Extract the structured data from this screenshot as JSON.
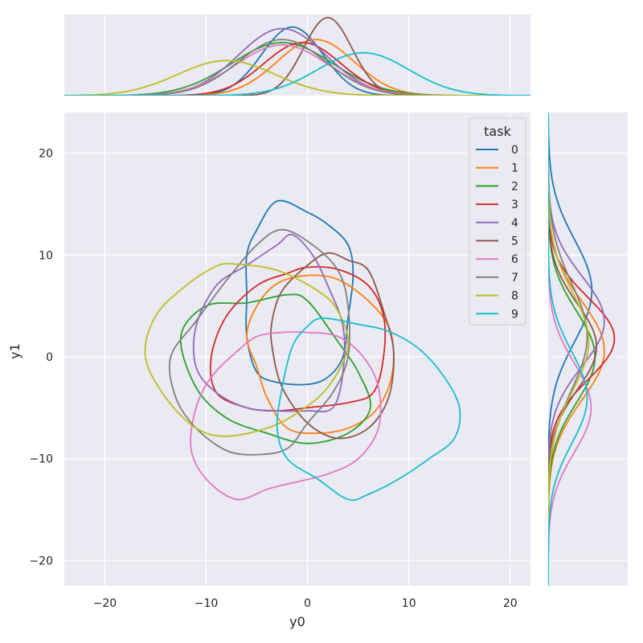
{
  "chart_data": {
    "type": "jointplot-kde",
    "xlabel": "y0",
    "ylabel": "y1",
    "xlim": [
      -24,
      22
    ],
    "ylim": [
      -22.5,
      24
    ],
    "xticks": [
      -20,
      -10,
      0,
      10,
      20
    ],
    "yticks": [
      -20,
      -10,
      0,
      10,
      20
    ],
    "xtick_labels": [
      "−20",
      "−10",
      "0",
      "10",
      "20"
    ],
    "ytick_labels": [
      "−20",
      "−10",
      "0",
      "10",
      "20"
    ],
    "grid": true,
    "legend": {
      "title": "task",
      "placement": "top-right"
    },
    "series": [
      {
        "name": "0",
        "color": "#1f77b4",
        "contour": [
          [
            -3,
            15.3
          ],
          [
            0,
            14.2
          ],
          [
            2,
            13
          ],
          [
            4,
            11
          ],
          [
            4.5,
            8
          ],
          [
            4,
            3.8
          ],
          [
            3.5,
            0
          ],
          [
            2,
            -2
          ],
          [
            0,
            -2.7
          ],
          [
            -3,
            -2.5
          ],
          [
            -5,
            -1.5
          ],
          [
            -6,
            2
          ],
          [
            -6,
            6
          ],
          [
            -6,
            10
          ],
          [
            -5,
            12.5
          ]
        ],
        "marg_x": {
          "mean": -1.5,
          "sd": 3.0,
          "peak": 0.88
        },
        "marg_y": {
          "mean": 6.5,
          "sd": 5.0,
          "peak": 0.56
        }
      },
      {
        "name": "1",
        "color": "#ff7f0e",
        "contour": [
          [
            0,
            8
          ],
          [
            3,
            7.6
          ],
          [
            6,
            5.5
          ],
          [
            8,
            3
          ],
          [
            8.5,
            0
          ],
          [
            8,
            -3
          ],
          [
            6.5,
            -5.5
          ],
          [
            4,
            -7
          ],
          [
            1,
            -7.5
          ],
          [
            -2,
            -7
          ],
          [
            -4,
            -4
          ],
          [
            -5,
            -1
          ],
          [
            -6,
            2
          ],
          [
            -5,
            5
          ],
          [
            -3,
            7.2
          ]
        ],
        "marg_x": {
          "mean": 0.8,
          "sd": 3.8,
          "peak": 0.72
        },
        "marg_y": {
          "mean": 0.6,
          "sd": 4.8,
          "peak": 0.72
        }
      },
      {
        "name": "2",
        "color": "#2ca02c",
        "contour": [
          [
            -2,
            6.1
          ],
          [
            0,
            5.5
          ],
          [
            3,
            1.5
          ],
          [
            5,
            -1.5
          ],
          [
            6.2,
            -5
          ],
          [
            4,
            -7.5
          ],
          [
            0,
            -8.5
          ],
          [
            -4,
            -7.5
          ],
          [
            -8,
            -6
          ],
          [
            -11,
            -3
          ],
          [
            -12.5,
            2
          ],
          [
            -10,
            5
          ],
          [
            -6,
            5.3
          ]
        ],
        "marg_x": {
          "mean": -2.5,
          "sd": 5.0,
          "peak": 0.68
        },
        "marg_y": {
          "mean": 0.0,
          "sd": 4.5,
          "peak": 0.6
        }
      },
      {
        "name": "3",
        "color": "#d62728",
        "contour": [
          [
            0,
            8.8
          ],
          [
            3,
            8.6
          ],
          [
            6,
            7
          ],
          [
            7.5,
            4
          ],
          [
            7.5,
            0
          ],
          [
            6.5,
            -3.5
          ],
          [
            4,
            -4.5
          ],
          [
            0,
            -5
          ],
          [
            -3,
            -5.3
          ],
          [
            -6,
            -5
          ],
          [
            -9,
            -3.5
          ],
          [
            -9.5,
            0
          ],
          [
            -8,
            4
          ],
          [
            -5,
            7
          ],
          [
            -2,
            8.2
          ]
        ],
        "marg_x": {
          "mean": -0.5,
          "sd": 3.8,
          "peak": 0.68
        },
        "marg_y": {
          "mean": 1.8,
          "sd": 4.0,
          "peak": 0.85
        }
      },
      {
        "name": "4",
        "color": "#9467bd",
        "contour": [
          [
            -1.5,
            12
          ],
          [
            0.5,
            10
          ],
          [
            2,
            7
          ],
          [
            3.5,
            3
          ],
          [
            3.5,
            -1.5
          ],
          [
            2.5,
            -5
          ],
          [
            0,
            -5.3
          ],
          [
            -3,
            -5.3
          ],
          [
            -6,
            -5
          ],
          [
            -9,
            -3.5
          ],
          [
            -11,
            -1
          ],
          [
            -11,
            3
          ],
          [
            -9,
            7
          ],
          [
            -6,
            9
          ],
          [
            -3,
            11
          ]
        ],
        "marg_x": {
          "mean": -2.5,
          "sd": 4.3,
          "peak": 0.86
        },
        "marg_y": {
          "mean": 3.5,
          "sd": 4.4,
          "peak": 0.72
        }
      },
      {
        "name": "5",
        "color": "#8c564b",
        "contour": [
          [
            2,
            10.2
          ],
          [
            4,
            9.5
          ],
          [
            6,
            8.5
          ],
          [
            7.5,
            4.5
          ],
          [
            8.5,
            0.5
          ],
          [
            8,
            -4
          ],
          [
            6,
            -7
          ],
          [
            3,
            -8
          ],
          [
            0,
            -6.5
          ],
          [
            -2.5,
            -3
          ],
          [
            -3.5,
            1
          ],
          [
            -3.5,
            3.5
          ],
          [
            -2.5,
            6.5
          ],
          [
            0,
            9
          ]
        ],
        "marg_x": {
          "mean": 2.0,
          "sd": 2.4,
          "peak": 1.0
        },
        "marg_y": {
          "mean": 1.0,
          "sd": 4.2,
          "peak": 0.62
        }
      },
      {
        "name": "6",
        "color": "#e377c2",
        "contour": [
          [
            0,
            2.4
          ],
          [
            3,
            2
          ],
          [
            5.5,
            0
          ],
          [
            7,
            -3
          ],
          [
            7,
            -7
          ],
          [
            5,
            -10
          ],
          [
            2,
            -11.5
          ],
          [
            -2,
            -12.5
          ],
          [
            -4,
            -13
          ],
          [
            -7,
            -14
          ],
          [
            -10,
            -12
          ],
          [
            -11.5,
            -9
          ],
          [
            -11,
            -5
          ],
          [
            -9.5,
            -2
          ],
          [
            -7,
            0.5
          ],
          [
            -5,
            2
          ],
          [
            -2.5,
            2.4
          ]
        ],
        "marg_x": {
          "mean": -2.5,
          "sd": 4.6,
          "peak": 0.65
        },
        "marg_y": {
          "mean": -5.0,
          "sd": 4.4,
          "peak": 0.55
        }
      },
      {
        "name": "7",
        "color": "#7f7f7f",
        "contour": [
          [
            -2.5,
            12.5
          ],
          [
            0.5,
            11
          ],
          [
            3,
            8.5
          ],
          [
            4,
            5
          ],
          [
            4,
            0
          ],
          [
            2.5,
            -3.5
          ],
          [
            0,
            -6.5
          ],
          [
            -2,
            -9
          ],
          [
            -5,
            -9.6
          ],
          [
            -8,
            -9.2
          ],
          [
            -11,
            -7
          ],
          [
            -13,
            -4
          ],
          [
            -13.5,
            0
          ],
          [
            -11,
            3.5
          ],
          [
            -8,
            7.5
          ],
          [
            -5,
            11
          ]
        ],
        "marg_x": {
          "mean": -2.5,
          "sd": 4.3,
          "peak": 0.72
        },
        "marg_y": {
          "mean": 2.0,
          "sd": 5.2,
          "peak": 0.5
        }
      },
      {
        "name": "8",
        "color": "#bcbd22",
        "contour": [
          [
            -7,
            9.1
          ],
          [
            -3,
            8.5
          ],
          [
            1,
            6.5
          ],
          [
            3,
            4.5
          ],
          [
            4,
            1
          ],
          [
            2,
            -3
          ],
          [
            -1,
            -5.5
          ],
          [
            -4,
            -7
          ],
          [
            -8,
            -7.8
          ],
          [
            -11,
            -7
          ],
          [
            -14,
            -4
          ],
          [
            -16,
            0
          ],
          [
            -15,
            4
          ],
          [
            -12,
            7
          ],
          [
            -9,
            8.9
          ]
        ],
        "marg_x": {
          "mean": -8.0,
          "sd": 4.8,
          "peak": 0.45
        },
        "marg_y": {
          "mean": 1.5,
          "sd": 4.8,
          "peak": 0.52
        }
      },
      {
        "name": "9",
        "color": "#17becf",
        "contour": [
          [
            1.5,
            3.8
          ],
          [
            5,
            3.2
          ],
          [
            8,
            2.5
          ],
          [
            11,
            0.8
          ],
          [
            13.5,
            -2
          ],
          [
            15,
            -5
          ],
          [
            14.5,
            -8
          ],
          [
            12,
            -10
          ],
          [
            9,
            -12
          ],
          [
            6,
            -13.5
          ],
          [
            4,
            -14
          ],
          [
            1,
            -12
          ],
          [
            -2,
            -10
          ],
          [
            -3,
            -7
          ],
          [
            -2.5,
            -3
          ],
          [
            -1.5,
            1
          ],
          [
            0,
            3
          ]
        ],
        "marg_x": {
          "mean": 5.5,
          "sd": 4.5,
          "peak": 0.55
        },
        "marg_y": {
          "mean": -4.0,
          "sd": 4.5,
          "peak": 0.5
        }
      }
    ]
  }
}
